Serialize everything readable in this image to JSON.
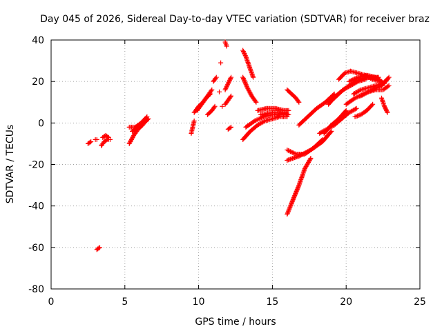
{
  "chart_data": {
    "type": "scatter",
    "title": "Day 045 of 2026, Sidereal Day-to-day VTEC variation (SDTVAR) for receiver braz",
    "xlabel": "GPS time / hours",
    "ylabel": "SDTVAR / TECUs",
    "xlim": [
      0,
      25
    ],
    "ylim": [
      -80,
      40
    ],
    "x_ticks": [
      "0",
      "5",
      "10",
      "15",
      "20",
      "25"
    ],
    "y_ticks": [
      "40",
      "20",
      "0",
      "-20",
      "-40",
      "-60",
      "-80"
    ],
    "grid": true,
    "marker": "plus",
    "color": "#ff0000",
    "series": [
      {
        "segments": [
          {
            "x": [
              2.5,
              2.7
            ],
            "y": [
              -10,
              -9
            ]
          },
          {
            "x": [
              3.0,
              3.1
            ],
            "y": [
              -8,
              -8
            ]
          },
          {
            "x": [
              3.4,
              3.6,
              3.8,
              4.0
            ],
            "y": [
              -11,
              -9,
              -8,
              -8
            ]
          },
          {
            "x": [
              3.5,
              3.7,
              3.9
            ],
            "y": [
              -7,
              -6,
              -7
            ]
          },
          {
            "x": [
              3.1,
              3.3
            ],
            "y": [
              -61,
              -60
            ]
          },
          {
            "x": [
              5.3,
              5.6,
              5.9,
              6.2,
              6.5
            ],
            "y": [
              -10,
              -6,
              -3,
              -1,
              2
            ]
          },
          {
            "x": [
              5.3,
              5.7,
              6.1,
              6.5
            ],
            "y": [
              -2,
              -2,
              0,
              3
            ]
          },
          {
            "x": [
              5.5,
              5.9,
              6.3,
              6.6
            ],
            "y": [
              -4,
              -2,
              0,
              2
            ]
          },
          {
            "x": [
              9.5,
              9.6,
              9.7
            ],
            "y": [
              -5,
              -2,
              1
            ]
          },
          {
            "x": [
              9.7,
              10.0,
              10.3,
              10.6,
              10.9
            ],
            "y": [
              5,
              8,
              10,
              13,
              16
            ]
          },
          {
            "x": [
              9.9,
              10.2,
              10.5,
              10.8
            ],
            "y": [
              6,
              9,
              12,
              14
            ]
          },
          {
            "x": [
              10.6,
              10.9,
              11.1
            ],
            "y": [
              4,
              6,
              8
            ]
          },
          {
            "x": [
              11.0,
              11.2
            ],
            "y": [
              20,
              22
            ]
          },
          {
            "x": [
              11.4
            ],
            "y": [
              15
            ]
          },
          {
            "x": [
              11.5
            ],
            "y": [
              29
            ]
          },
          {
            "x": [
              11.6
            ],
            "y": [
              8
            ]
          },
          {
            "x": [
              11.8,
              11.9
            ],
            "y": [
              39,
              37
            ]
          },
          {
            "x": [
              11.8,
              12.0,
              12.2
            ],
            "y": [
              9,
              11,
              13
            ]
          },
          {
            "x": [
              11.8,
              12.0,
              12.2
            ],
            "y": [
              16,
              19,
              22
            ]
          },
          {
            "x": [
              12.0,
              12.2
            ],
            "y": [
              -3,
              -2
            ]
          },
          {
            "x": [
              13.0,
              13.2,
              13.4,
              13.7
            ],
            "y": [
              35,
              32,
              28,
              22
            ]
          },
          {
            "x": [
              13.0,
              13.3,
              13.6,
              13.9
            ],
            "y": [
              22,
              17,
              13,
              10
            ]
          },
          {
            "x": [
              13.0,
              13.5,
              14.0,
              14.5,
              15.0,
              15.5,
              16.0
            ],
            "y": [
              -8,
              -4,
              -1,
              1,
              2,
              3,
              3
            ]
          },
          {
            "x": [
              13.2,
              13.8,
              14.4,
              15.0,
              15.6,
              16.0
            ],
            "y": [
              -2,
              1,
              3,
              4,
              4,
              4
            ]
          },
          {
            "x": [
              14.0,
              14.6,
              15.2,
              15.8,
              16.1
            ],
            "y": [
              6,
              7,
              7,
              6,
              6
            ]
          },
          {
            "x": [
              14.2,
              15.0,
              15.8,
              16.1
            ],
            "y": [
              4,
              5,
              5,
              4
            ]
          },
          {
            "x": [
              16.0,
              16.3,
              16.6,
              16.8
            ],
            "y": [
              16,
              14,
              12,
              10
            ]
          },
          {
            "x": [
              16.0,
              16.4,
              16.8,
              17.2,
              17.6
            ],
            "y": [
              -44,
              -37,
              -30,
              -22,
              -17
            ]
          },
          {
            "x": [
              16.0,
              16.6,
              17.2,
              17.8,
              18.4
            ],
            "y": [
              -13,
              -15,
              -15,
              -12,
              -8
            ]
          },
          {
            "x": [
              16.0,
              16.8,
              17.6,
              18.4,
              19.0
            ],
            "y": [
              -18,
              -16,
              -13,
              -9,
              -4
            ]
          },
          {
            "x": [
              16.8,
              17.4,
              18.0,
              18.6,
              19.2
            ],
            "y": [
              -1,
              3,
              7,
              10,
              14
            ]
          },
          {
            "x": [
              18.2,
              18.7,
              19.2,
              19.7,
              20.2,
              20.7
            ],
            "y": [
              -5,
              -3,
              -1,
              2,
              5,
              7
            ]
          },
          {
            "x": [
              18.5,
              19.0,
              19.5,
              20.0
            ],
            "y": [
              -5,
              -1,
              2,
              6
            ]
          },
          {
            "x": [
              18.8,
              19.3,
              19.8,
              20.3,
              20.8,
              21.3
            ],
            "y": [
              9,
              13,
              16,
              18,
              20,
              21
            ]
          },
          {
            "x": [
              19.2,
              19.8,
              20.4,
              21.0,
              21.6,
              22.2
            ],
            "y": [
              12,
              16,
              19,
              21,
              22,
              22
            ]
          },
          {
            "x": [
              19.5,
              19.9,
              20.3,
              20.8,
              21.3,
              21.8,
              22.3
            ],
            "y": [
              21,
              24,
              25,
              24,
              23,
              21,
              20
            ]
          },
          {
            "x": [
              20.0,
              20.6,
              21.2,
              21.8,
              22.4,
              22.8
            ],
            "y": [
              9,
              12,
              14,
              16,
              18,
              21
            ]
          },
          {
            "x": [
              20.2,
              20.8,
              21.4,
              22.0,
              22.6
            ],
            "y": [
              20,
              22,
              23,
              22,
              19
            ]
          },
          {
            "x": [
              20.5,
              21.0,
              21.5,
              22.0,
              22.5,
              22.9
            ],
            "y": [
              14,
              16,
              17,
              18,
              19,
              22
            ]
          },
          {
            "x": [
              20.6,
              21.0,
              21.4,
              21.8
            ],
            "y": [
              3,
              4,
              6,
              9
            ]
          },
          {
            "x": [
              21.0,
              21.5,
              22.0,
              22.5,
              22.9
            ],
            "y": [
              13,
              15,
              16,
              16,
              18
            ]
          },
          {
            "x": [
              22.4,
              22.6,
              22.8
            ],
            "y": [
              12,
              8,
              5
            ]
          }
        ]
      }
    ]
  }
}
